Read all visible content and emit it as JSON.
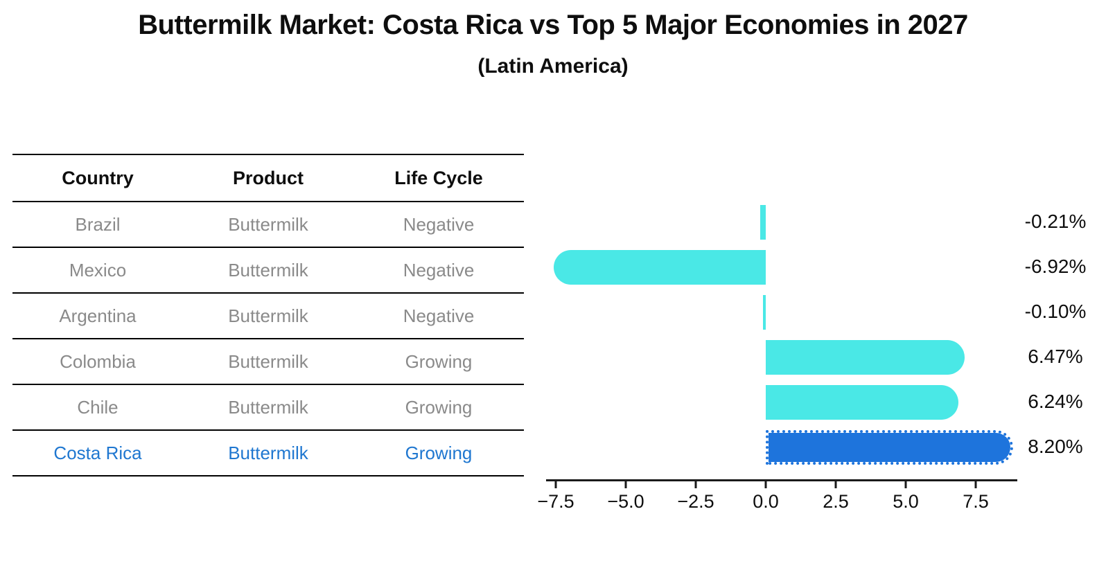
{
  "header": {
    "title": "Buttermilk Market: Costa Rica vs Top 5 Major Economies in 2027",
    "subtitle": "(Latin America)"
  },
  "table": {
    "columns": [
      "Country",
      "Product",
      "Life Cycle"
    ]
  },
  "chart_data": {
    "type": "bar",
    "orientation": "horizontal",
    "title": "Buttermilk Market: Costa Rica vs Top 5 Major Economies in 2027",
    "subtitle": "(Latin America)",
    "categories": [
      "Brazil",
      "Mexico",
      "Argentina",
      "Colombia",
      "Chile",
      "Costa Rica"
    ],
    "values": [
      -0.21,
      -6.92,
      -0.1,
      6.47,
      6.24,
      8.2
    ],
    "unit": "%",
    "rows": [
      {
        "country": "Brazil",
        "product": "Buttermilk",
        "life_cycle": "Negative",
        "value": -0.21,
        "label": "-0.21%"
      },
      {
        "country": "Mexico",
        "product": "Buttermilk",
        "life_cycle": "Negative",
        "value": -6.92,
        "label": "-6.92%"
      },
      {
        "country": "Argentina",
        "product": "Buttermilk",
        "life_cycle": "Negative",
        "value": -0.1,
        "label": "-0.10%"
      },
      {
        "country": "Colombia",
        "product": "Buttermilk",
        "life_cycle": "Growing",
        "value": 6.47,
        "label": "6.47%"
      },
      {
        "country": "Chile",
        "product": "Buttermilk",
        "life_cycle": "Growing",
        "value": 6.24,
        "label": "6.24%"
      },
      {
        "country": "Costa Rica",
        "product": "Buttermilk",
        "life_cycle": "Growing",
        "value": 8.2,
        "label": "8.20%"
      }
    ],
    "x_tick_labels": [
      "−7.5",
      "−5.0",
      "−2.5",
      "0.0",
      "2.5",
      "5.0",
      "7.5"
    ],
    "x_tick_values": [
      -7.5,
      -5.0,
      -2.5,
      0.0,
      2.5,
      5.0,
      7.5
    ],
    "xlim": [
      -7.85,
      9.0
    ],
    "grid": false,
    "legend": false,
    "highlight_index": 5,
    "colors": {
      "bar": "#4AE8E6",
      "highlight_bar": "#1E74DC",
      "highlight_text": "#1F77D0",
      "table_text": "#8A8A8A",
      "axis_text": "#0E0E0E"
    }
  }
}
